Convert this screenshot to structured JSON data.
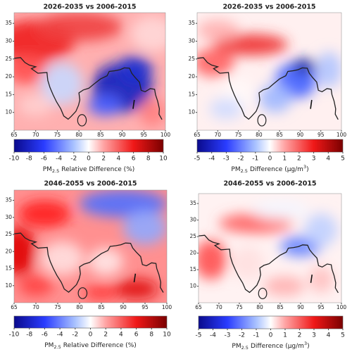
{
  "panels": [
    {
      "title": "2026-2035 vs 2006-2015",
      "xlim": [
        65,
        100
      ],
      "ylim": [
        5,
        38
      ],
      "xticks": [
        65,
        70,
        75,
        80,
        85,
        90,
        95,
        100
      ],
      "yticks": [
        10,
        15,
        20,
        25,
        30,
        35
      ],
      "colorbar": {
        "ticks": [
          -10,
          -8,
          -6,
          -4,
          -2,
          0,
          2,
          4,
          6,
          8,
          10
        ],
        "label": {
          "base": "PM",
          "sub": "2.5",
          "text": "Relative Difference (%)"
        }
      }
    },
    {
      "title": "2026-2035 vs 2006-2015",
      "xlim": [
        65,
        100
      ],
      "ylim": [
        5,
        38
      ],
      "xticks": [
        65,
        70,
        75,
        80,
        85,
        90,
        95,
        100
      ],
      "yticks": [
        10,
        15,
        20,
        25,
        30,
        35
      ],
      "colorbar": {
        "ticks": [
          -5,
          -4,
          -3,
          -2,
          -1,
          0,
          1,
          2,
          3,
          4,
          5
        ],
        "label": {
          "base": "PM",
          "sub": "2.5",
          "text": "Difference (µg/m",
          "sup": "3",
          "end": ")"
        }
      }
    },
    {
      "title": "2046-2055 vs 2006-2015",
      "xlim": [
        65,
        100
      ],
      "ylim": [
        5,
        38
      ],
      "xticks": [
        65,
        70,
        75,
        80,
        85,
        90,
        95,
        100
      ],
      "yticks": [
        10,
        15,
        20,
        25,
        30,
        35
      ],
      "colorbar": {
        "ticks": [
          -10,
          -8,
          -6,
          -4,
          -2,
          0,
          2,
          4,
          6,
          8,
          10
        ],
        "label": {
          "base": "PM",
          "sub": "2.5",
          "text": "Relative Difference (%)"
        }
      }
    },
    {
      "title": "2046-2055 vs 2006-2015",
      "xlim": [
        65,
        100
      ],
      "ylim": [
        5,
        38
      ],
      "xticks": [
        65,
        70,
        75,
        80,
        85,
        90,
        95,
        100
      ],
      "yticks": [
        10,
        15,
        20,
        25,
        30,
        35
      ],
      "colorbar": {
        "ticks": [
          -5,
          -4,
          -3,
          -2,
          -1,
          0,
          1,
          2,
          3,
          4,
          5
        ],
        "label": {
          "base": "PM",
          "sub": "2.5",
          "text": "Difference (µg/m",
          "sup": "3",
          "end": ")"
        }
      }
    }
  ]
}
